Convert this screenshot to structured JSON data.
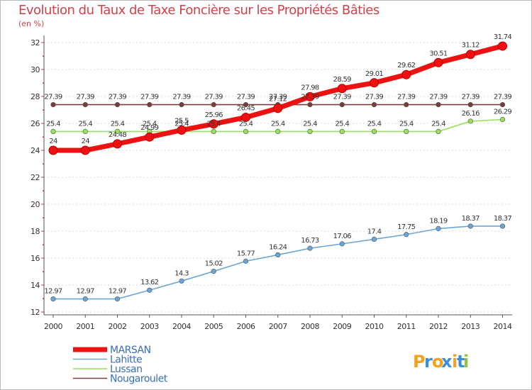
{
  "chart_data": {
    "type": "line",
    "title": "Evolution du Taux de Taxe Foncière sur les Propriétés Bâties",
    "ylabel": "(en %)",
    "xlabel": "",
    "ylim": [
      12,
      32
    ],
    "yticks": [
      12,
      14,
      16,
      18,
      20,
      22,
      24,
      26,
      28,
      30,
      32
    ],
    "x": [
      "2000",
      "2001",
      "2002",
      "2003",
      "2004",
      "2005",
      "2006",
      "2007",
      "2008",
      "2009",
      "2010",
      "2011",
      "2012",
      "2013",
      "2014"
    ],
    "series": [
      {
        "name": "Nougaroulet",
        "color": "#7a3b3b",
        "labels": [
          "27.39",
          "27.39",
          "27.39",
          "27.39",
          "27.39",
          "27.39",
          "27.39",
          "27.39",
          "27.39",
          "27.39",
          "27.39",
          "27.39",
          "27.39",
          "27.39",
          "27.39"
        ],
        "values": [
          27.39,
          27.39,
          27.39,
          27.39,
          27.39,
          27.39,
          27.39,
          27.39,
          27.39,
          27.39,
          27.39,
          27.39,
          27.39,
          27.39,
          27.39
        ]
      },
      {
        "name": "Lussan",
        "color": "#99e05a",
        "labels": [
          "25.4",
          "25.4",
          "25.4",
          "25.4",
          "25.4",
          "25.4",
          "25.4",
          "25.4",
          "25.4",
          "25.4",
          "25.4",
          "25.4",
          "25.4",
          "26.16",
          "26.29"
        ],
        "values": [
          25.4,
          25.4,
          25.4,
          25.4,
          25.4,
          25.4,
          25.4,
          25.4,
          25.4,
          25.4,
          25.4,
          25.4,
          25.4,
          26.16,
          26.29
        ]
      },
      {
        "name": "Lahitte",
        "color": "#6aa5d8",
        "labels": [
          "12.97",
          "12.97",
          "12.97",
          "13.62",
          "14.3",
          "15.02",
          "15.77",
          "16.24",
          "16.73",
          "17.06",
          "17.4",
          "17.75",
          "18.19",
          "18.37",
          "18.37"
        ],
        "values": [
          12.97,
          12.97,
          12.97,
          13.62,
          14.3,
          15.02,
          15.77,
          16.24,
          16.73,
          17.06,
          17.4,
          17.75,
          18.19,
          18.37,
          18.37
        ]
      },
      {
        "name": "MARSAN",
        "color": "#ee1111",
        "labels": [
          "24",
          "24",
          "24.48",
          "24.99",
          "25.5",
          "25.96",
          "26.45",
          "27.12",
          "27.98",
          "28.59",
          "29.01",
          "29.62",
          "30.51",
          "31.12",
          "31.74"
        ],
        "values": [
          24,
          24,
          24.48,
          24.99,
          25.5,
          25.96,
          26.45,
          27.12,
          27.98,
          28.59,
          29.01,
          29.62,
          30.51,
          31.12,
          31.74
        ]
      }
    ],
    "legend_order": [
      "MARSAN",
      "Lahitte",
      "Lussan",
      "Nougaroulet"
    ],
    "legend_position": "bottom-left"
  },
  "brand": {
    "logo_text": "Proxiti",
    "letters": [
      "P",
      "r",
      "o",
      "x",
      "i",
      "t",
      "i"
    ],
    "colors": [
      "#f4a21d",
      "#3b8fd9",
      "#f4a21d",
      "#3b8fd9",
      "#f4a21d",
      "#3b8fd9",
      "#8cc63f"
    ]
  }
}
